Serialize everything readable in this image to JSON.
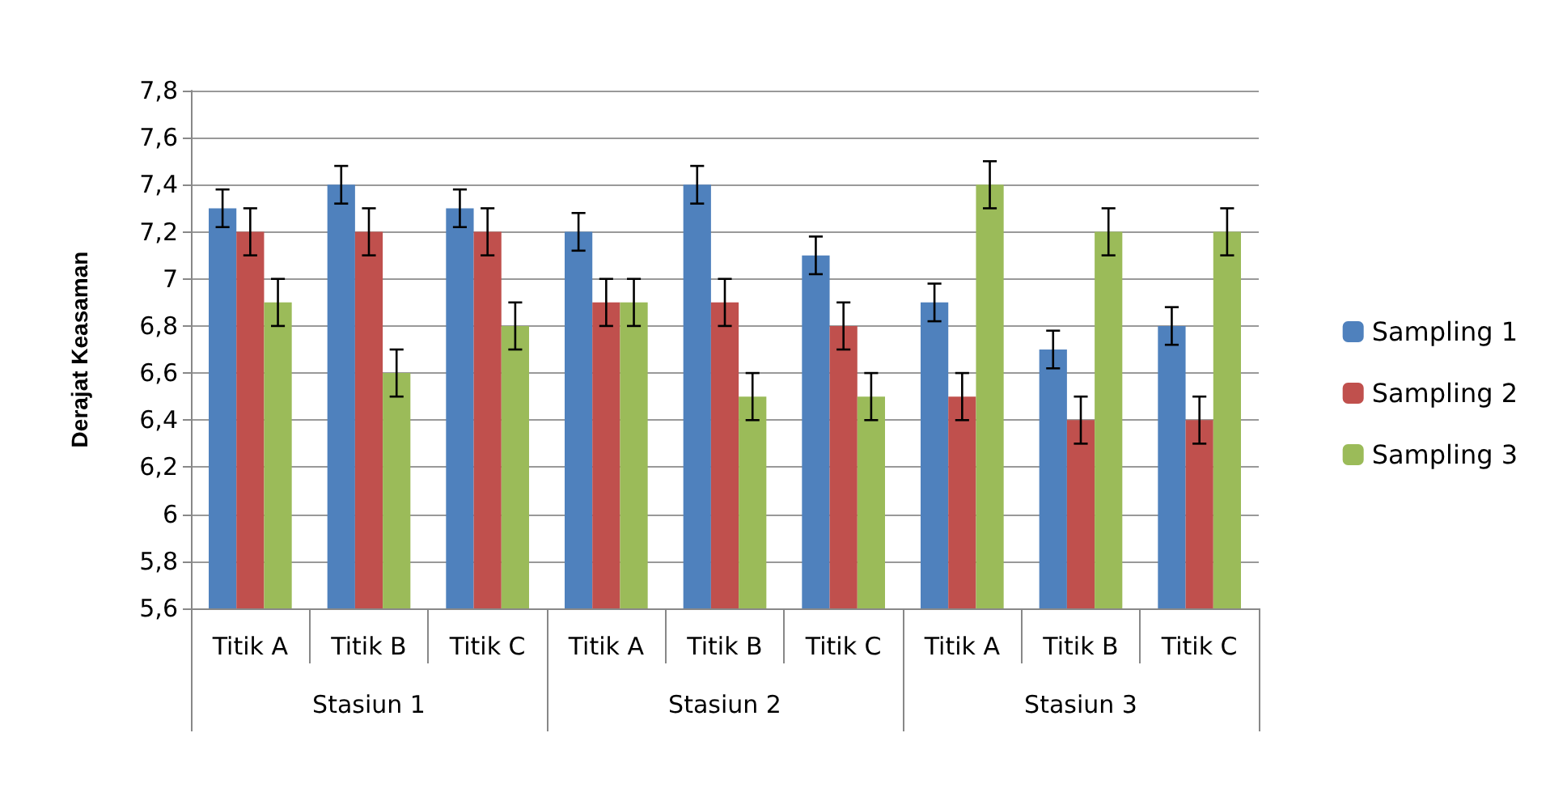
{
  "chart_data": {
    "type": "bar",
    "ylabel": "Derajat Keasaman",
    "categories": [
      "Titik A",
      "Titik B",
      "Titik C",
      "Titik A",
      "Titik B",
      "Titik C",
      "Titik A",
      "Titik B",
      "Titik C"
    ],
    "annotations": [
      "Stasiun 1",
      "Stasiun 2",
      "Stasiun 3"
    ],
    "series": [
      {
        "name": "Sampling 1",
        "color": "#4f81bd",
        "values": [
          7.3,
          7.4,
          7.3,
          7.2,
          7.4,
          7.1,
          6.9,
          6.7,
          6.8
        ],
        "errors": [
          0.08,
          0.08,
          0.08,
          0.08,
          0.08,
          0.08,
          0.08,
          0.08,
          0.08
        ]
      },
      {
        "name": "Sampling 2",
        "color": "#c0504d",
        "values": [
          7.2,
          7.2,
          7.2,
          6.9,
          6.9,
          6.8,
          6.5,
          6.4,
          6.4
        ],
        "errors": [
          0.1,
          0.1,
          0.1,
          0.1,
          0.1,
          0.1,
          0.1,
          0.1,
          0.1
        ]
      },
      {
        "name": "Sampling 3",
        "color": "#9bbb59",
        "values": [
          6.9,
          6.6,
          6.8,
          6.9,
          6.5,
          6.5,
          7.4,
          7.2,
          7.2
        ],
        "errors": [
          0.1,
          0.1,
          0.1,
          0.1,
          0.1,
          0.1,
          0.1,
          0.1,
          0.1
        ]
      }
    ],
    "ylim": [
      5.6,
      7.8
    ],
    "yticks": [
      {
        "value": 5.6,
        "label": "5,6"
      },
      {
        "value": 5.8,
        "label": "5,8"
      },
      6,
      {
        "value": 6.2,
        "label": "6,2"
      },
      {
        "value": 6.4,
        "label": "6,4"
      },
      {
        "value": 6.6,
        "label": "6,6"
      },
      {
        "value": 6.8,
        "label": "6,8"
      },
      7,
      {
        "value": 7.2,
        "label": "7,2"
      },
      {
        "value": 7.4,
        "label": "7,4"
      },
      {
        "value": 7.6,
        "label": "7,6"
      },
      {
        "value": 7.8,
        "label": "7,8"
      }
    ],
    "grid": "y",
    "legend": "right"
  }
}
